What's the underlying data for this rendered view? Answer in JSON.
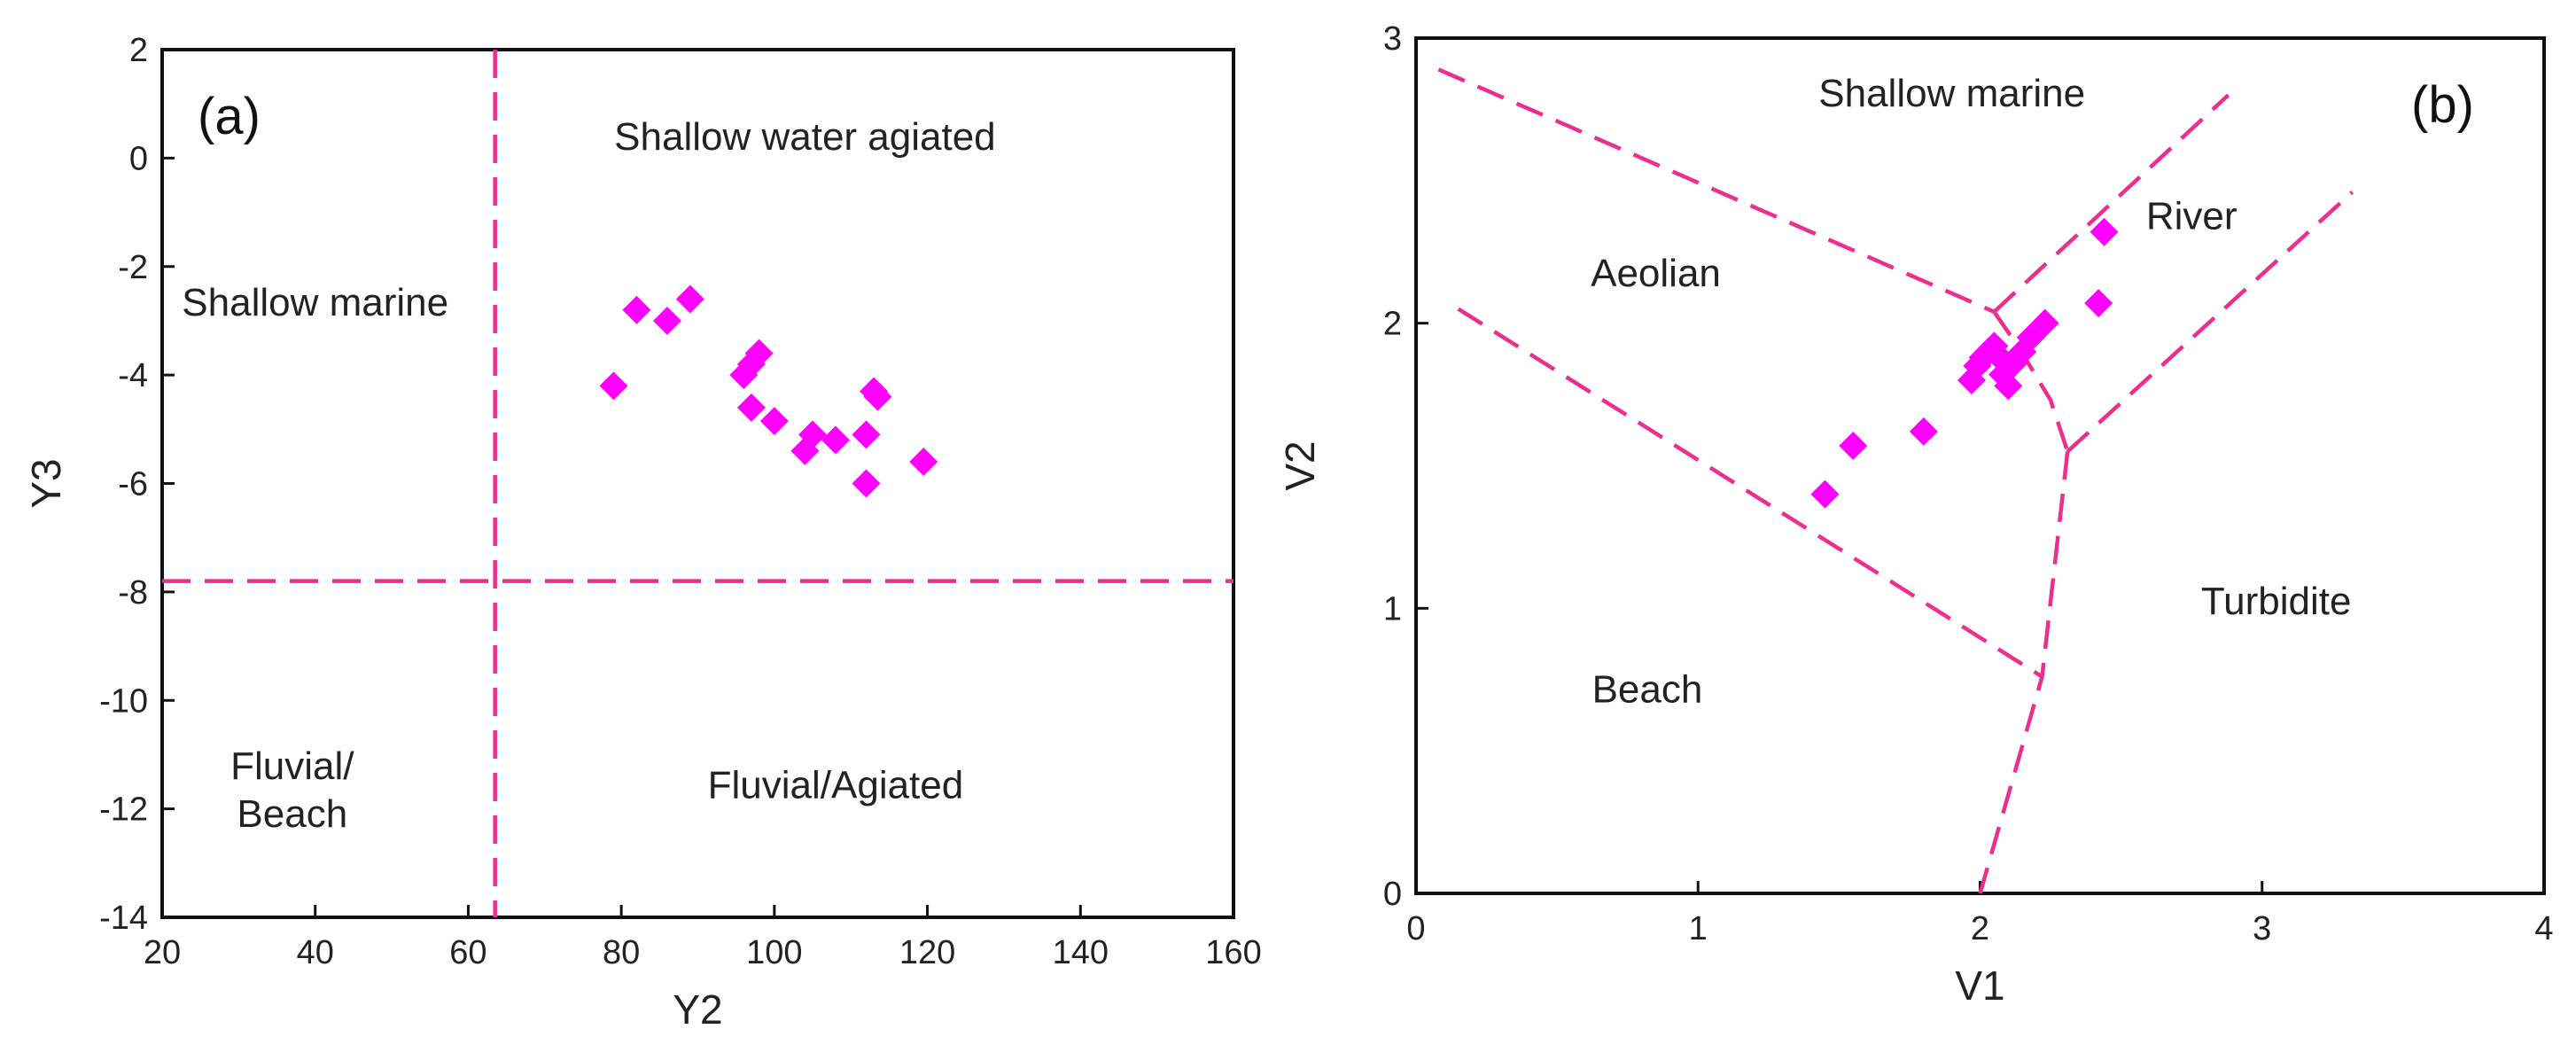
{
  "colors": {
    "boundary": "#ec2f8f",
    "points": "#ff00ff",
    "axis": "#111111"
  },
  "chart_data": [
    {
      "type": "scatter",
      "panel_label": "(a)",
      "xlabel": "Y2",
      "ylabel": "Y3",
      "xlim": [
        20,
        160
      ],
      "ylim": [
        -14,
        2
      ],
      "xticks": [
        20,
        40,
        60,
        80,
        100,
        120,
        140,
        160
      ],
      "yticks": [
        -14,
        -12,
        -10,
        -8,
        -6,
        -4,
        -2,
        0,
        2
      ],
      "marker": "diamond",
      "points": [
        {
          "x": 79,
          "y": -4.2
        },
        {
          "x": 82,
          "y": -2.8
        },
        {
          "x": 86,
          "y": -3.0
        },
        {
          "x": 89,
          "y": -2.6
        },
        {
          "x": 96,
          "y": -4.0
        },
        {
          "x": 97,
          "y": -3.8
        },
        {
          "x": 98,
          "y": -3.6
        },
        {
          "x": 97,
          "y": -4.6
        },
        {
          "x": 100,
          "y": -4.85
        },
        {
          "x": 104,
          "y": -5.4
        },
        {
          "x": 105,
          "y": -5.1
        },
        {
          "x": 108,
          "y": -5.2
        },
        {
          "x": 112,
          "y": -5.1
        },
        {
          "x": 112,
          "y": -6.0
        },
        {
          "x": 113,
          "y": -4.3
        },
        {
          "x": 113.5,
          "y": -4.4
        },
        {
          "x": 119.5,
          "y": -5.6
        }
      ],
      "boundaries": [
        {
          "name": "vertical",
          "points": [
            [
              63.5,
              2
            ],
            [
              63.5,
              -14
            ]
          ]
        },
        {
          "name": "horizontal",
          "points": [
            [
              20,
              -7.8
            ],
            [
              160,
              -7.8
            ]
          ]
        }
      ],
      "regions": [
        {
          "name": "shallow-water-agitated",
          "lines": [
            "Shallow water agiated"
          ],
          "x": 104,
          "y": 0.15
        },
        {
          "name": "shallow-marine",
          "lines": [
            "Shallow marine"
          ],
          "x": 40,
          "y": -2.9
        },
        {
          "name": "fluvial-beach",
          "lines": [
            "Fluvial/",
            "Beach"
          ],
          "x": 37,
          "y": -11.45
        },
        {
          "name": "fluvial-agitated",
          "lines": [
            "Fluvial/Agiated"
          ],
          "x": 108,
          "y": -11.8
        }
      ]
    },
    {
      "type": "scatter",
      "panel_label": "(b)",
      "xlabel": "V1",
      "ylabel": "V2",
      "xlim": [
        0,
        4
      ],
      "ylim": [
        0,
        3
      ],
      "xticks": [
        0,
        1,
        2,
        3,
        4
      ],
      "yticks": [
        0,
        1,
        2,
        3
      ],
      "marker": "diamond",
      "points": [
        {
          "x": 1.45,
          "y": 1.4
        },
        {
          "x": 1.55,
          "y": 1.57
        },
        {
          "x": 1.8,
          "y": 1.62
        },
        {
          "x": 1.97,
          "y": 1.8
        },
        {
          "x": 1.99,
          "y": 1.85
        },
        {
          "x": 2.01,
          "y": 1.88
        },
        {
          "x": 2.03,
          "y": 1.9
        },
        {
          "x": 2.05,
          "y": 1.92
        },
        {
          "x": 2.07,
          "y": 1.88
        },
        {
          "x": 2.08,
          "y": 1.82
        },
        {
          "x": 2.1,
          "y": 1.78
        },
        {
          "x": 2.12,
          "y": 1.86
        },
        {
          "x": 2.15,
          "y": 1.9
        },
        {
          "x": 2.18,
          "y": 1.95
        },
        {
          "x": 2.23,
          "y": 2.0
        },
        {
          "x": 2.42,
          "y": 2.07
        },
        {
          "x": 2.44,
          "y": 2.32
        }
      ],
      "boundaries": [
        {
          "name": "shallow-marine-aeolian",
          "points": [
            [
              0.08,
              2.89
            ],
            [
              2.05,
              2.04
            ]
          ]
        },
        {
          "name": "shallow-marine-river",
          "points": [
            [
              2.05,
              2.04
            ],
            [
              2.88,
              2.8
            ]
          ]
        },
        {
          "name": "aeolian-river",
          "points": [
            [
              2.05,
              2.04
            ],
            [
              2.14,
              1.91
            ],
            [
              2.25,
              1.73
            ],
            [
              2.31,
              1.55
            ]
          ]
        },
        {
          "name": "river-turbidite",
          "points": [
            [
              2.31,
              1.55
            ],
            [
              3.32,
              2.46
            ]
          ]
        },
        {
          "name": "beach-turbidite",
          "points": [
            [
              2.31,
              1.55
            ],
            [
              2.22,
              0.76
            ],
            [
              2.0,
              0.0
            ]
          ]
        },
        {
          "name": "aeolian-beach",
          "points": [
            [
              0.15,
              2.05
            ],
            [
              2.22,
              0.76
            ]
          ]
        }
      ],
      "regions": [
        {
          "name": "shallow-marine",
          "lines": [
            "Shallow marine"
          ],
          "x": 1.9,
          "y": 2.76
        },
        {
          "name": "aeolian",
          "lines": [
            "Aeolian"
          ],
          "x": 0.85,
          "y": 2.13
        },
        {
          "name": "river",
          "lines": [
            "River"
          ],
          "x": 2.75,
          "y": 2.33
        },
        {
          "name": "turbidite",
          "lines": [
            "Turbidite"
          ],
          "x": 3.05,
          "y": 0.98
        },
        {
          "name": "beach",
          "lines": [
            "Beach"
          ],
          "x": 0.82,
          "y": 0.67
        }
      ]
    }
  ]
}
